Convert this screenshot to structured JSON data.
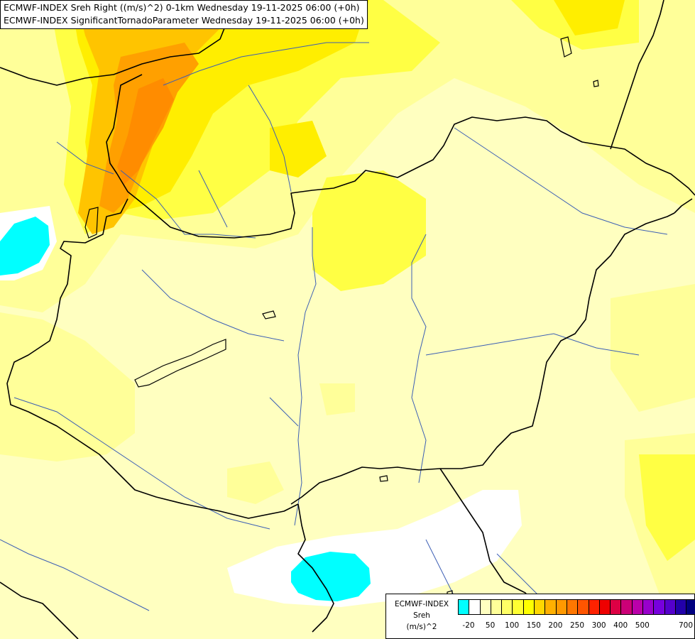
{
  "titles": {
    "line1": "ECMWF-INDEX Sreh Right ((m/s)^2) 0-1km Wednesday 19-11-2025 06:00 (+0h)",
    "line2": "ECMWF-INDEX SignificantTornadoParameter Wednesday 19-11-2025 06:00 (+0h)"
  },
  "legend": {
    "source": "ECMWF-INDEX",
    "parameter": "Sreh",
    "unit": "(m/s)^2",
    "colors": [
      "#00ffff",
      "#ffffff",
      "#ffffc0",
      "#ffff99",
      "#ffff66",
      "#ffff33",
      "#ffff00",
      "#ffd700",
      "#ffb000",
      "#ff9900",
      "#ff7700",
      "#ff5500",
      "#ff2200",
      "#ee0000",
      "#dd0044",
      "#cc0077",
      "#bb00aa",
      "#9900cc",
      "#7700dd",
      "#5500cc",
      "#2200aa",
      "#000080"
    ],
    "ticks": [
      "-20",
      "50",
      "100",
      "150",
      "200",
      "250",
      "300",
      "400",
      "500",
      "700"
    ]
  },
  "colors": {
    "border_color": "#000000",
    "river_color": "#3c5fb4",
    "background_fill": "#ffffc0"
  }
}
